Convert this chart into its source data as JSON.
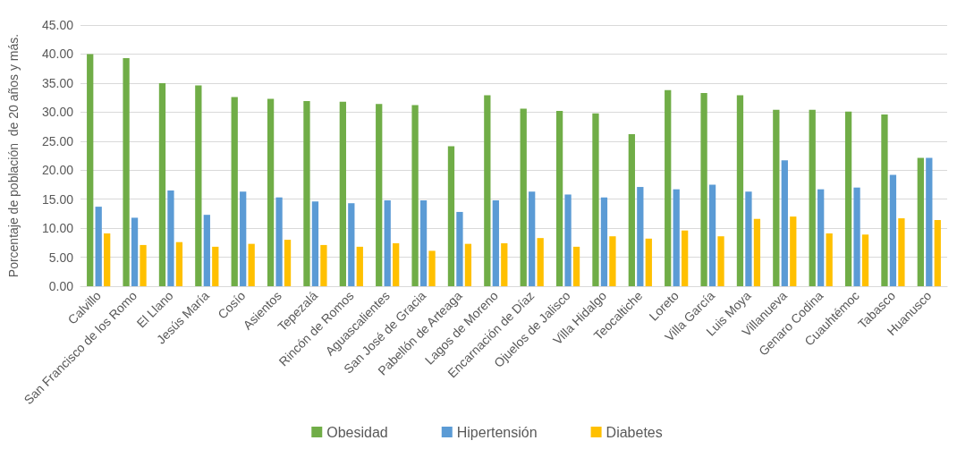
{
  "chart_data": {
    "type": "bar",
    "ylabel": "Porcentaje de población  de 20 años y más.",
    "categories": [
      "Calvillo",
      "San Francisco de los Romo",
      "El Llano",
      "Jesús María",
      "Cosío",
      "Asientos",
      "Tepezalá",
      "Rincón de Romos",
      "Aguascalientes",
      "San José de Gracia",
      "Pabellón de Arteaga",
      "Lagos de Moreno",
      "Encarnación de Díaz",
      "Ojuelos de Jalisco",
      "Villa Hidalgo",
      "Teocaltiche",
      "Loreto",
      "Villa García",
      "Luis Moya",
      "Villanueva",
      "Genaro Codina",
      "Cuauhtémoc",
      "Tabasco",
      "Huanusco"
    ],
    "series": [
      {
        "name": "Obesidad",
        "color": "#70ad47",
        "values": [
          40.0,
          39.3,
          35.0,
          34.6,
          32.6,
          32.3,
          31.9,
          31.8,
          31.4,
          31.2,
          24.1,
          32.9,
          30.6,
          30.2,
          29.8,
          26.2,
          33.8,
          33.3,
          32.9,
          30.4,
          30.4,
          30.1,
          29.6,
          22.1
        ]
      },
      {
        "name": "Hipertensión",
        "color": "#5b9bd5",
        "values": [
          13.7,
          11.8,
          16.5,
          12.3,
          16.3,
          15.3,
          14.6,
          14.3,
          14.8,
          14.8,
          12.8,
          14.8,
          16.3,
          15.8,
          15.3,
          17.1,
          16.7,
          17.5,
          16.3,
          21.7,
          16.7,
          17.0,
          19.2,
          22.1
        ]
      },
      {
        "name": "Diabetes",
        "color": "#ffc000",
        "values": [
          9.1,
          7.1,
          7.6,
          6.8,
          7.3,
          8.0,
          7.1,
          6.8,
          7.4,
          6.1,
          7.3,
          7.4,
          8.3,
          6.8,
          8.6,
          8.2,
          9.6,
          8.6,
          11.6,
          12.0,
          9.1,
          8.9,
          11.7,
          11.4
        ]
      }
    ],
    "ylim": [
      0,
      45
    ],
    "yticks": [
      {
        "value": 0,
        "label": "0.00"
      },
      {
        "value": 5,
        "label": "5.00"
      },
      {
        "value": 10,
        "label": "10.00"
      },
      {
        "value": 15,
        "label": "15.00"
      },
      {
        "value": 20,
        "label": "20.00"
      },
      {
        "value": 25,
        "label": "25.00"
      },
      {
        "value": 30,
        "label": "30.00"
      },
      {
        "value": 35,
        "label": "35.00"
      },
      {
        "value": 40,
        "label": "40.00"
      },
      {
        "value": 45,
        "label": "45.00"
      }
    ],
    "grid": "y",
    "legend": "bottom"
  }
}
